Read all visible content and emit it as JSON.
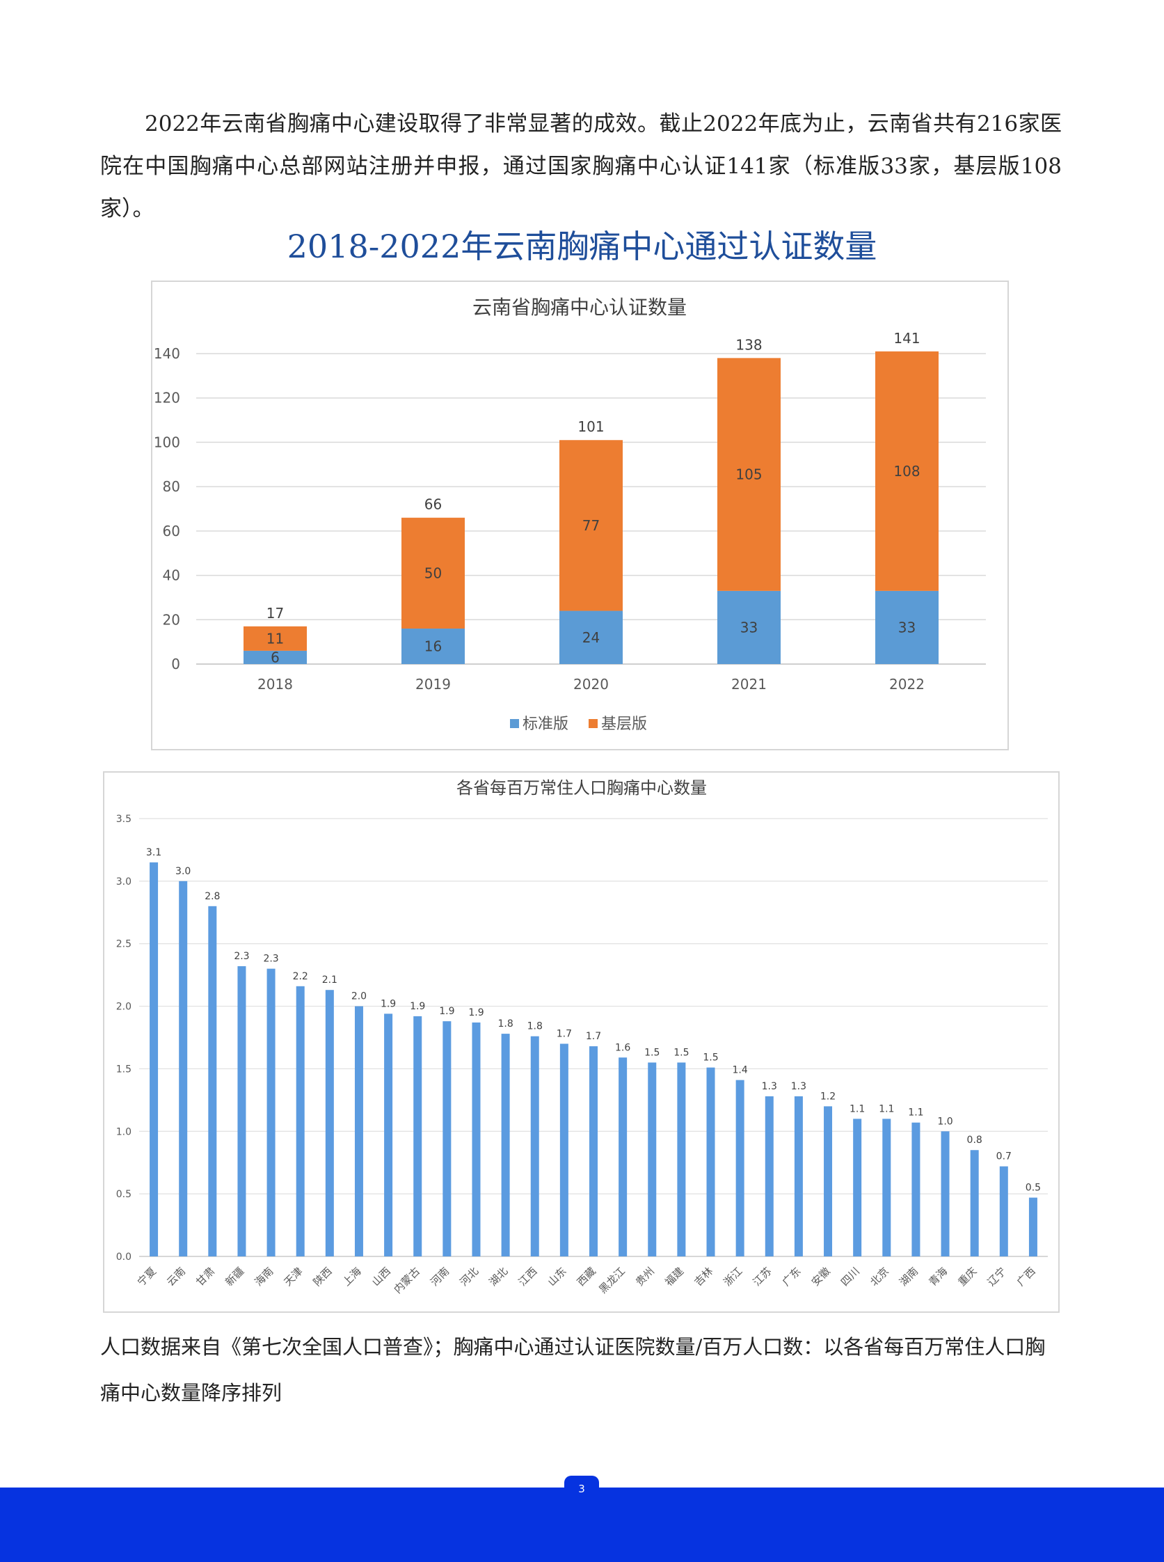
{
  "intro": {
    "text": "2022年云南省胸痛中心建设取得了非常显著的成效。截止2022年底为止，云南省共有216家医院在中国胸痛中心总部网站注册并申报，通过国家胸痛中心认证141家（标准版33家，基层版108家）。"
  },
  "section_title": "2018-2022年云南胸痛中心通过认证数量",
  "chart_data": [
    {
      "type": "bar",
      "stacked": true,
      "title": "云南省胸痛中心认证数量",
      "categories": [
        "2018",
        "2019",
        "2020",
        "2021",
        "2022"
      ],
      "series": [
        {
          "name": "标准版",
          "values": [
            6,
            16,
            24,
            33,
            33
          ],
          "color": "#5b9bd5"
        },
        {
          "name": "基层版",
          "values": [
            11,
            50,
            77,
            105,
            108
          ],
          "color": "#ed7d31"
        }
      ],
      "totals": [
        17,
        66,
        101,
        138,
        141
      ],
      "ylim": [
        0,
        140
      ],
      "yticks": [
        0,
        20,
        40,
        60,
        80,
        100,
        120,
        140
      ],
      "grid": true,
      "legend": "bottom"
    },
    {
      "type": "bar",
      "title": "各省每百万常住人口胸痛中心数量",
      "categories": [
        "宁夏",
        "云南",
        "甘肃",
        "新疆",
        "海南",
        "天津",
        "陕西",
        "上海",
        "山西",
        "内蒙古",
        "河南",
        "河北",
        "湖北",
        "江西",
        "山东",
        "西藏",
        "黑龙江",
        "贵州",
        "福建",
        "吉林",
        "浙江",
        "江苏",
        "广东",
        "安徽",
        "四川",
        "北京",
        "湖南",
        "青海",
        "重庆",
        "辽宁",
        "广西"
      ],
      "values": [
        3.15,
        3.0,
        2.8,
        2.32,
        2.3,
        2.16,
        2.13,
        2.0,
        1.94,
        1.92,
        1.88,
        1.87,
        1.78,
        1.76,
        1.7,
        1.68,
        1.59,
        1.55,
        1.55,
        1.51,
        1.41,
        1.28,
        1.28,
        1.2,
        1.1,
        1.1,
        1.07,
        1.0,
        0.85,
        0.72,
        0.47
      ],
      "labels": [
        "3.1",
        "3.0",
        "2.8",
        "2.3",
        "2.3",
        "2.2",
        "2.1",
        "2.0",
        "1.9",
        "1.9",
        "1.9",
        "1.9",
        "1.8",
        "1.8",
        "1.7",
        "1.7",
        "1.6",
        "1.5",
        "1.5",
        "1.5",
        "1.4",
        "1.3",
        "1.3",
        "1.2",
        "1.1",
        "1.1",
        "1.1",
        "1.0",
        "0.8",
        "0.7",
        "0.5"
      ],
      "color": "#5b9be0",
      "ylim": [
        0,
        3.5
      ],
      "yticks": [
        "0.0",
        "0.5",
        "1.0",
        "1.5",
        "2.0",
        "2.5",
        "3.0",
        "3.5"
      ],
      "grid": true
    }
  ],
  "note": "人口数据来自《第七次全国人口普查》；胸痛中心通过认证医院数量/百万人口数：以各省每百万常住人口胸痛中心数量降序排列",
  "page_number": "3"
}
